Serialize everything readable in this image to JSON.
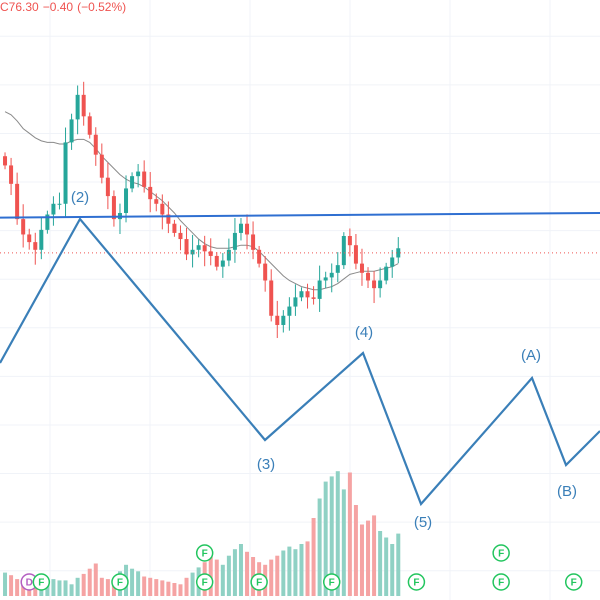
{
  "header": {
    "close": "C76.30",
    "change": "−0.40",
    "change_pct": "(−0.52%)",
    "color": "#ef5350"
  },
  "colors": {
    "up": "#26a69a",
    "down": "#ef5350",
    "up_volume": "#8fd1c4",
    "down_volume": "#f5a3a3",
    "wave_line": "#3a7fb8",
    "horizontal_line": "#2f6fd1",
    "moving_average": "#8a8a8a",
    "last_price_line": "#ef5350",
    "grid": "#f0f3f8",
    "event_green": "#22c55e",
    "event_purple": "#b35fc2"
  },
  "chart_data": {
    "type": "candlestick",
    "y_axis_range": [
      54,
      92
    ],
    "grid": true,
    "last_price": 76.3,
    "price_series": [
      [
        82.0,
        80.8,
        78.5,
        77.5,
        77.0,
        76.5,
        77.8,
        78.8,
        79.5,
        79.5
      ],
      [
        83.5,
        85.0,
        86.6,
        85.2,
        84.0,
        82.7,
        81.2,
        80.0,
        78.5,
        78.9
      ],
      [
        80.5,
        81.3,
        81.6,
        80.6,
        79.8,
        79.5,
        78.8,
        78.2,
        77.6,
        77.2
      ],
      [
        76.2,
        76.5,
        76.8,
        76.4,
        76.1,
        75.4,
        75.8,
        76.5,
        77.6,
        78.2
      ],
      [
        77.5,
        76.5,
        75.6,
        74.5,
        72.2,
        71.6,
        72.2,
        72.8,
        73.4,
        73.8
      ],
      [
        73.4,
        73.3,
        74.5,
        74.7,
        75.0,
        75.5,
        77.4,
        76.8,
        75.6,
        75.0
      ],
      [
        74.5,
        74.0,
        74.5,
        75.4,
        76.0,
        76.6
      ]
    ],
    "moving_average": [
      [
        85.5,
        85.3,
        84.9,
        84.4,
        84.1,
        83.8,
        83.6,
        83.5,
        83.5,
        83.4
      ],
      [
        83.4,
        83.6,
        83.7,
        83.7,
        83.5,
        83.1,
        82.6,
        82.2,
        81.8,
        81.4
      ],
      [
        81.1,
        80.9,
        80.8,
        80.6,
        80.3,
        80.0,
        79.7,
        79.3,
        78.9,
        78.4
      ],
      [
        78.0,
        77.6,
        77.2,
        76.9,
        76.7,
        76.6,
        76.6,
        76.6,
        76.7,
        76.8
      ],
      [
        76.8,
        76.7,
        76.4,
        76.0,
        75.6,
        75.2,
        74.8,
        74.5,
        74.3,
        74.1
      ],
      [
        74.0,
        73.9,
        73.9,
        74.0,
        74.1,
        74.3,
        74.6,
        74.9,
        75.0,
        75.1
      ],
      [
        75.1,
        75.1,
        75.2,
        75.3,
        75.4,
        75.6
      ]
    ],
    "waves": [
      {
        "label": "",
        "price": 78.8
      },
      {
        "label": "(2)",
        "price": 86.8
      },
      {
        "label": "(3)",
        "price": 75.2
      },
      {
        "label": "(4)",
        "price": 78.8
      },
      {
        "label": "(5)",
        "price": 70.8
      },
      {
        "label": "(A)",
        "price": 77.6
      },
      {
        "label": "(B)",
        "price": 73.6
      },
      {
        "label": "",
        "price": 75.4
      }
    ],
    "horizontal_level": [
      78.6,
      78.9
    ],
    "volume_series": [
      [
        18,
        16,
        13,
        10,
        12,
        11,
        9,
        10,
        13,
        12
      ],
      [
        12,
        9,
        14,
        17,
        21,
        25,
        14,
        13,
        12,
        19
      ],
      [
        24,
        21,
        19,
        15,
        14,
        13,
        12,
        11,
        10,
        9
      ],
      [
        14,
        18,
        22,
        26,
        30,
        28,
        24,
        31,
        36,
        40
      ],
      [
        34,
        30,
        26,
        24,
        28,
        31,
        35,
        38,
        36,
        40
      ],
      [
        42,
        60,
        75,
        88,
        92,
        96,
        82,
        95,
        70,
        55
      ],
      [
        58,
        62,
        50,
        45,
        40,
        48
      ]
    ],
    "volume_scale_max": 100,
    "events": [
      {
        "label": "D",
        "index": 4,
        "kind": "dividend"
      },
      {
        "label": "F",
        "index": 6,
        "kind": "financials"
      },
      {
        "label": "F",
        "index": 19,
        "kind": "financials"
      },
      {
        "label": "F",
        "index": 33,
        "kind": "financials",
        "stacked": true
      },
      {
        "label": "F",
        "index": 42,
        "kind": "financials"
      },
      {
        "label": "F",
        "index": 54,
        "kind": "financials"
      },
      {
        "label": "F",
        "index": 68,
        "kind": "financials"
      },
      {
        "label": "F",
        "index": 82,
        "kind": "financials",
        "stacked": true
      },
      {
        "label": "F",
        "index": 94,
        "kind": "financials"
      }
    ]
  }
}
